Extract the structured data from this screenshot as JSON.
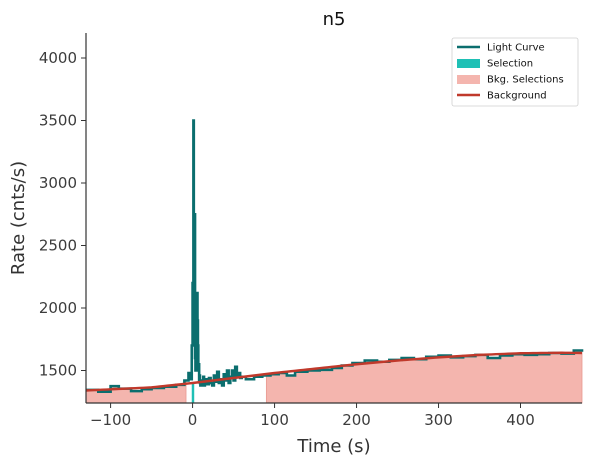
{
  "chart_data": {
    "type": "line",
    "title": "n5",
    "xlabel": "Time (s)",
    "ylabel": "Rate (cnts/s)",
    "xlim": [
      -130,
      475
    ],
    "ylim": [
      1240,
      4200
    ],
    "x_ticks": [
      -100,
      0,
      100,
      200,
      300,
      400
    ],
    "y_ticks": [
      1500,
      2000,
      2500,
      3000,
      3500,
      4000
    ],
    "grid": false,
    "legend_position": "top-right",
    "colors": {
      "light_curve": "#0b6e6e",
      "selection": "#1fc0b5",
      "bkg_selection": "#f4b5ae",
      "bkg_selection_edge": "#e89a92",
      "background": "#c0392b"
    },
    "legend": [
      {
        "label": "Light Curve",
        "kind": "line",
        "color": "#0b6e6e"
      },
      {
        "label": "Selection",
        "kind": "patch",
        "color": "#1fc0b5"
      },
      {
        "label": "Bkg. Selections",
        "kind": "patch",
        "color": "#f4b5ae"
      },
      {
        "label": "Background",
        "kind": "line",
        "color": "#c0392b"
      }
    ],
    "selection": [
      -1,
      2
    ],
    "bkg_selections": [
      [
        -130,
        -8
      ],
      [
        90,
        475
      ]
    ],
    "background_model": {
      "x": [
        -130,
        -50,
        0,
        50,
        100,
        150,
        200,
        250,
        300,
        350,
        400,
        450,
        475
      ],
      "y": [
        1340,
        1365,
        1400,
        1440,
        1480,
        1515,
        1550,
        1580,
        1605,
        1625,
        1638,
        1642,
        1640
      ]
    },
    "light_curve": {
      "x": [
        -130,
        -115,
        -100,
        -90,
        -75,
        -62,
        -50,
        -35,
        -20,
        -10,
        -5,
        -3,
        -1,
        0,
        0.5,
        1,
        1.5,
        2,
        2.5,
        3,
        3.5,
        4,
        4.5,
        5,
        5.5,
        6,
        6.5,
        7,
        7.5,
        8,
        8.5,
        9,
        9.5,
        10,
        11,
        12,
        13,
        14,
        15,
        16,
        17,
        18,
        20,
        22,
        24,
        26,
        28,
        30,
        32,
        34,
        36,
        38,
        40,
        42,
        44,
        46,
        48,
        50,
        52,
        54,
        56,
        58,
        60,
        65,
        75,
        85,
        95,
        105,
        115,
        125,
        140,
        155,
        170,
        182,
        195,
        210,
        225,
        240,
        255,
        270,
        285,
        300,
        315,
        330,
        345,
        360,
        375,
        390,
        405,
        420,
        435,
        450,
        465,
        475
      ],
      "y": [
        1345,
        1330,
        1375,
        1355,
        1335,
        1350,
        1360,
        1370,
        1385,
        1420,
        1480,
        1430,
        1700,
        2200,
        1900,
        3500,
        1800,
        2350,
        2750,
        1600,
        1500,
        1800,
        2100,
        2000,
        2120,
        1900,
        1700,
        1500,
        1550,
        1420,
        1460,
        1400,
        1380,
        1420,
        1380,
        1400,
        1450,
        1380,
        1420,
        1400,
        1430,
        1390,
        1440,
        1400,
        1380,
        1460,
        1410,
        1490,
        1400,
        1430,
        1380,
        1470,
        1420,
        1500,
        1400,
        1450,
        1500,
        1420,
        1530,
        1450,
        1480,
        1440,
        1450,
        1430,
        1450,
        1460,
        1470,
        1480,
        1460,
        1490,
        1500,
        1505,
        1520,
        1540,
        1560,
        1580,
        1570,
        1585,
        1600,
        1590,
        1610,
        1620,
        1605,
        1615,
        1625,
        1600,
        1620,
        1630,
        1625,
        1630,
        1640,
        1635,
        1660,
        1670
      ]
    }
  }
}
